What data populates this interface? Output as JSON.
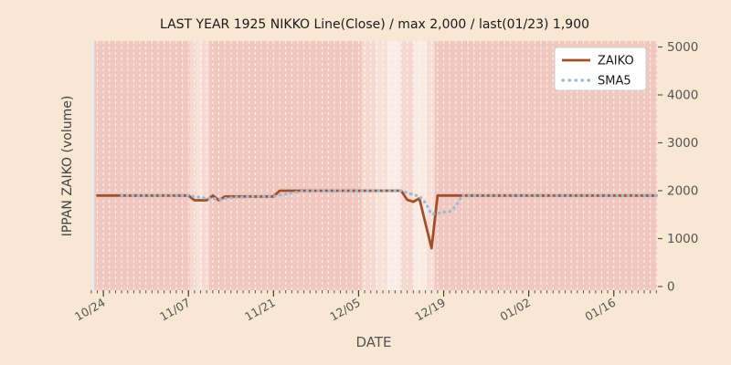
{
  "title": "LAST YEAR 1925 NIKKO Line(Close) / max 2,000 / last(01/23) 1,900",
  "stats": {
    "max": "2,000",
    "last_date": "01/23",
    "last": "1,900"
  },
  "chart_data": {
    "type": "line",
    "title": "LAST YEAR 1925 NIKKO Line(Close) / max 2,000 / last(01/23) 1,900",
    "xlabel": "DATE",
    "ylabel": "IPPAN ZAIKO (volume)",
    "ylim": [
      0,
      5000
    ],
    "yticks": [
      0,
      1000,
      2000,
      3000,
      4000,
      5000
    ],
    "grid": "vertical-daily-dashed-white",
    "x_start_date": "10/23",
    "x_end_date": "01/23",
    "n_days": 93,
    "x_major_ticks": [
      {
        "day": 1,
        "label": "10/24"
      },
      {
        "day": 15,
        "label": "11/07"
      },
      {
        "day": 29,
        "label": "11/21"
      },
      {
        "day": 43,
        "label": "12/05"
      },
      {
        "day": 57,
        "label": "12/19"
      },
      {
        "day": 71,
        "label": "01/02"
      },
      {
        "day": 85,
        "label": "01/16"
      }
    ],
    "legend": {
      "position": "upper right",
      "entries": [
        "ZAIKO",
        "SMA5"
      ]
    },
    "series": [
      {
        "name": "ZAIKO",
        "style": "solid",
        "color": "#a0512b",
        "values": [
          1900,
          1900,
          1900,
          1900,
          1900,
          1900,
          1900,
          1900,
          1900,
          1900,
          1900,
          1900,
          1900,
          1900,
          1900,
          1900,
          1800,
          1800,
          1800,
          1900,
          1800,
          1880,
          1880,
          1880,
          1880,
          1880,
          1880,
          1880,
          1880,
          1880,
          2000,
          2000,
          2000,
          2000,
          2000,
          2000,
          2000,
          2000,
          2000,
          2000,
          2000,
          2000,
          2000,
          2000,
          2000,
          2000,
          2000,
          2000,
          2000,
          2000,
          2000,
          1810,
          1770,
          1840,
          1320,
          800,
          1900,
          1900,
          1900,
          1900,
          1900,
          1900,
          1900,
          1900,
          1900,
          1900,
          1900,
          1900,
          1900,
          1900,
          1900,
          1900,
          1900,
          1900,
          1900,
          1900,
          1900,
          1900,
          1900,
          1900,
          1900,
          1900,
          1900,
          1900,
          1900,
          1900,
          1900,
          1900,
          1900,
          1900,
          1900,
          1900,
          1900
        ]
      },
      {
        "name": "SMA5",
        "style": "dotted",
        "color": "#9fb8d4",
        "derived": "5-day moving average of ZAIKO",
        "window": 5
      }
    ],
    "background_bands": {
      "base_color": "#f0c8c0",
      "light_bands": [
        {
          "from": 15.2,
          "to": 16.3,
          "color": "#f6dad2"
        },
        {
          "from": 16.3,
          "to": 17.3,
          "color": "#f8e3db"
        },
        {
          "from": 17.3,
          "to": 18.4,
          "color": "#f6dad2"
        },
        {
          "from": 43.5,
          "to": 45.7,
          "color": "#f5d9d1"
        },
        {
          "from": 45.7,
          "to": 47.7,
          "color": "#f7e1d9"
        },
        {
          "from": 47.7,
          "to": 49.9,
          "color": "#faece4"
        },
        {
          "from": 49.9,
          "to": 52.0,
          "color": "#f5d9d1"
        },
        {
          "from": 52.0,
          "to": 54.3,
          "color": "#f9eae2"
        },
        {
          "from": 54.3,
          "to": 55.5,
          "color": "#f6ddd5"
        }
      ]
    },
    "colors": {
      "figure_bg": "#f7e7d3",
      "plot_bg": "#e9e9f0",
      "gridline": "#ffffff",
      "tick_text": "#555555",
      "title_text": "#1a1a1a",
      "legend_bg": "#ffffff",
      "legend_border": "#cccccc"
    }
  }
}
